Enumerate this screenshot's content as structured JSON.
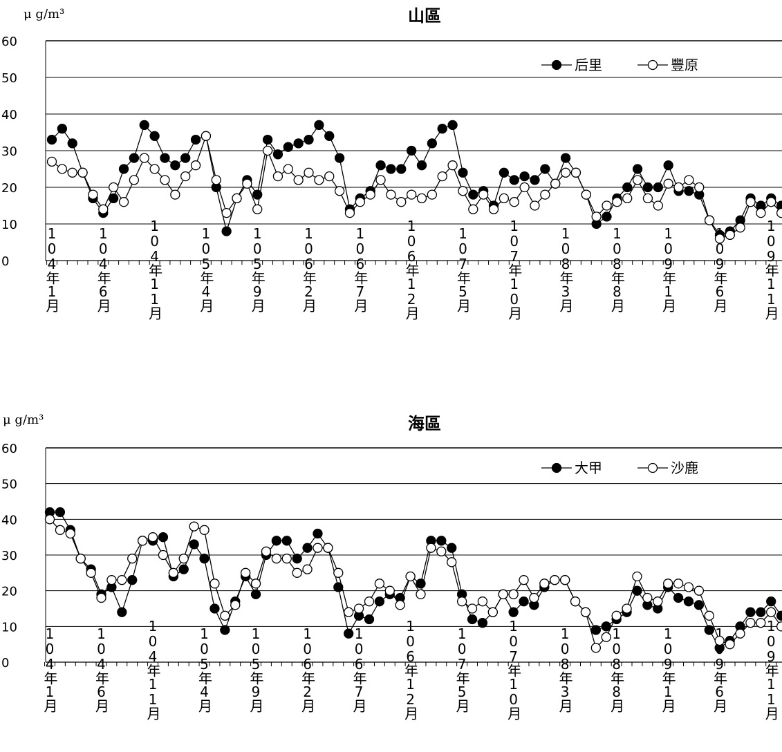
{
  "unit_label": "μ g/m³",
  "chart_data": [
    {
      "type": "line",
      "title": "山區",
      "ylim": [
        0,
        60
      ],
      "yticks": [
        0,
        10,
        20,
        30,
        40,
        50,
        60
      ],
      "grid": true,
      "legend_position": "top-right",
      "x_tick_labels": [
        "104年1月",
        "104年6月",
        "104年11月",
        "105年4月",
        "105年9月",
        "106年2月",
        "106年7月",
        "106年12月",
        "107年5月",
        "107年10月",
        "108年3月",
        "108年8月",
        "109年1月",
        "109年6月",
        "109年11月"
      ],
      "series": [
        {
          "name": "后里",
          "marker": "filled",
          "values": [
            33,
            36,
            32,
            24,
            17,
            13,
            17,
            25,
            28,
            37,
            34,
            28,
            26,
            28,
            33,
            34,
            20,
            8,
            17,
            22,
            18,
            33,
            29,
            31,
            32,
            33,
            37,
            34,
            28,
            14,
            17,
            19,
            26,
            25,
            25,
            30,
            26,
            32,
            36,
            37,
            24,
            18,
            19,
            15,
            24,
            22,
            23,
            22,
            25,
            21,
            28,
            24,
            18,
            10,
            12,
            17,
            20,
            25,
            20,
            20,
            26,
            19,
            19,
            18,
            11,
            7,
            8,
            11,
            17,
            15,
            17,
            15
          ]
        },
        {
          "name": "豐原",
          "marker": "hollow",
          "values": [
            27,
            25,
            24,
            24,
            18,
            14,
            20,
            16,
            22,
            28,
            25,
            22,
            18,
            23,
            26,
            34,
            22,
            13,
            17,
            21,
            14,
            30,
            23,
            25,
            22,
            24,
            22,
            23,
            19,
            13,
            16,
            18,
            22,
            18,
            16,
            18,
            17,
            18,
            23,
            26,
            19,
            14,
            18,
            14,
            17,
            16,
            20,
            15,
            18,
            21,
            24,
            24,
            18,
            12,
            15,
            16,
            17,
            22,
            17,
            15,
            21,
            20,
            22,
            20,
            11,
            6,
            7,
            9,
            16,
            13,
            16,
            13
          ]
        }
      ]
    },
    {
      "type": "line",
      "title": "海區",
      "ylim": [
        0,
        60
      ],
      "yticks": [
        0,
        10,
        20,
        30,
        40,
        50,
        60
      ],
      "grid": true,
      "legend_position": "top-right",
      "x_tick_labels": [
        "104年1月",
        "104年6月",
        "104年11月",
        "105年4月",
        "105年9月",
        "106年2月",
        "106年7月",
        "106年12月",
        "107年5月",
        "107年10月",
        "108年3月",
        "108年8月",
        "109年1月",
        "109年6月",
        "109年11月"
      ],
      "series": [
        {
          "name": "大甲",
          "marker": "filled",
          "values": [
            42,
            42,
            37,
            29,
            26,
            19,
            21,
            14,
            23,
            34,
            34,
            35,
            24,
            26,
            33,
            29,
            15,
            9,
            17,
            24,
            19,
            30,
            34,
            34,
            29,
            32,
            36,
            32,
            21,
            8,
            13,
            12,
            17,
            19,
            18,
            24,
            22,
            34,
            34,
            32,
            19,
            12,
            11,
            14,
            19,
            14,
            17,
            16,
            21,
            23,
            23,
            17,
            14,
            9,
            10,
            12,
            14,
            20,
            16,
            15,
            21,
            18,
            17,
            16,
            9,
            4,
            6,
            10,
            14,
            14,
            17,
            13
          ]
        },
        {
          "name": "沙鹿",
          "marker": "hollow",
          "values": [
            40,
            37,
            36,
            29,
            25,
            18,
            23,
            23,
            29,
            34,
            35,
            30,
            25,
            29,
            38,
            37,
            22,
            13,
            16,
            25,
            22,
            31,
            29,
            29,
            25,
            26,
            32,
            32,
            25,
            14,
            15,
            17,
            22,
            20,
            16,
            24,
            19,
            32,
            31,
            28,
            17,
            15,
            17,
            14,
            19,
            19,
            23,
            18,
            22,
            23,
            23,
            17,
            14,
            4,
            7,
            13,
            15,
            24,
            18,
            17,
            22,
            22,
            21,
            20,
            13,
            6,
            5,
            8,
            11,
            11,
            14,
            10
          ]
        }
      ]
    }
  ]
}
